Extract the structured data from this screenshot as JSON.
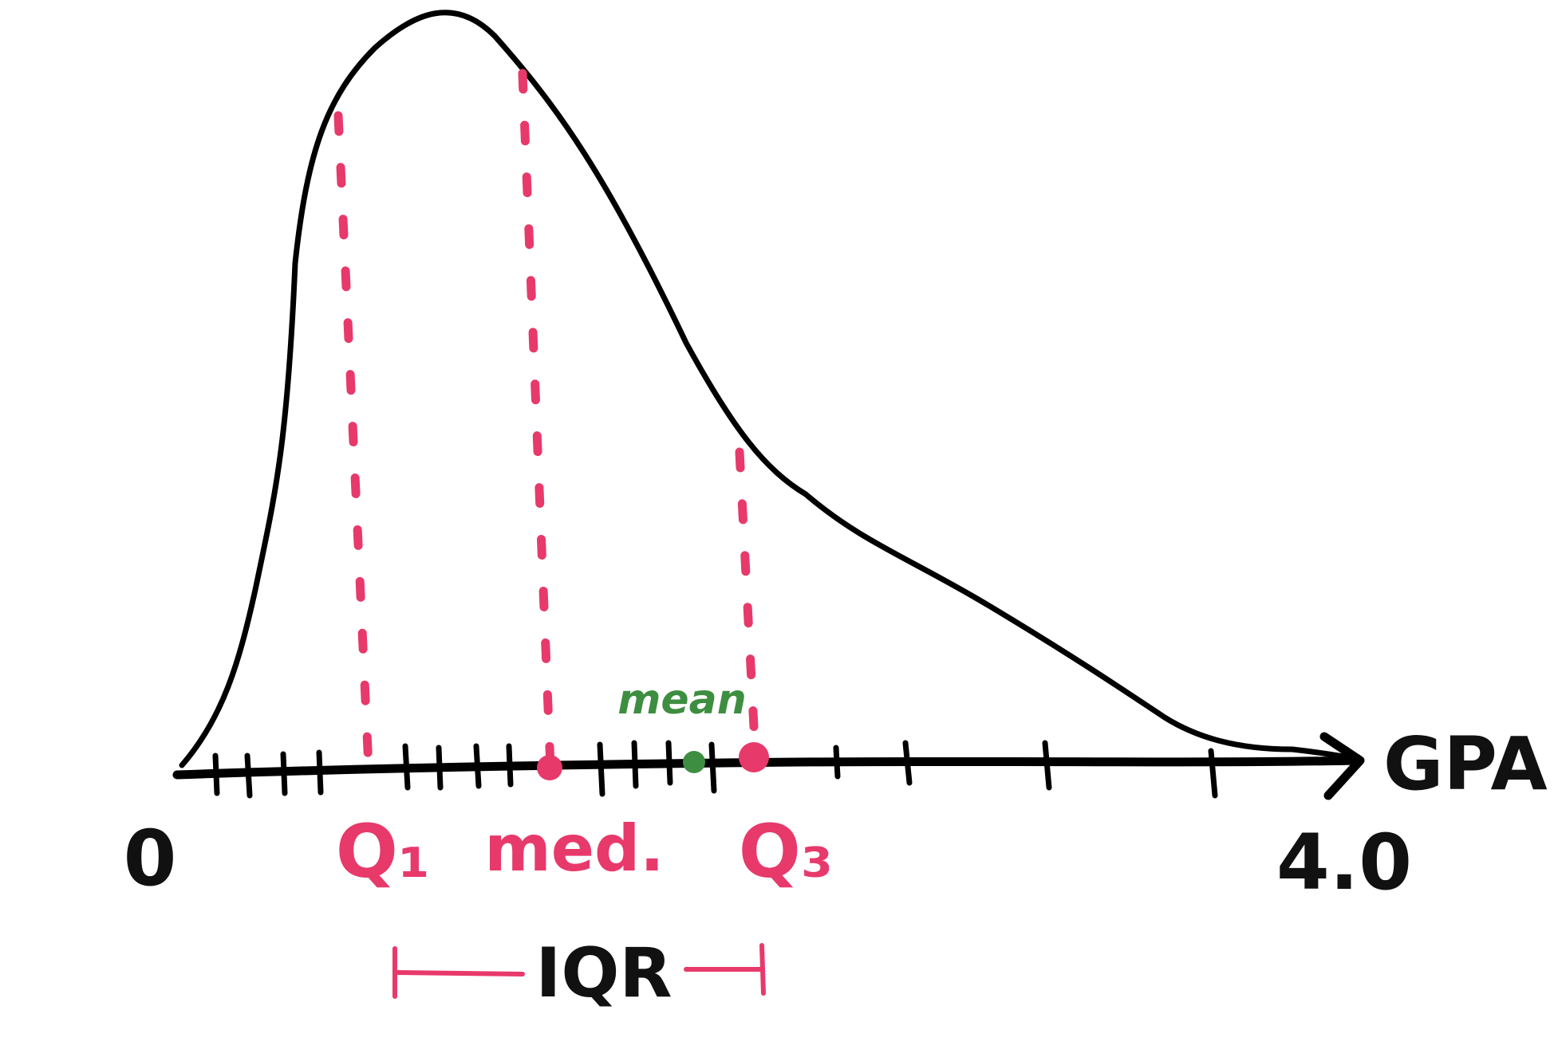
{
  "axis": {
    "label": "GPA",
    "min_label": "0",
    "max_label": "4.0"
  },
  "markers": {
    "q1": "Q₁",
    "median": "med.",
    "q3": "Q₃",
    "mean": "mean"
  },
  "iqr": {
    "label": "IQR"
  },
  "colors": {
    "curve": "#000000",
    "quartiles": "#E8396B",
    "mean": "#3E8E41"
  }
}
